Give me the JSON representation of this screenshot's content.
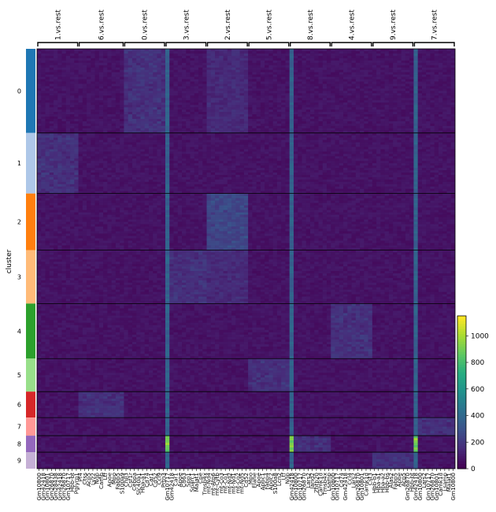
{
  "chart_data": {
    "type": "heatmap",
    "ylabel": "cluster",
    "clusters": [
      {
        "name": "0",
        "color": "#1f77b4",
        "cells": 107
      },
      {
        "name": "1",
        "color": "#aec7e8",
        "cells": 77
      },
      {
        "name": "2",
        "color": "#ff7f0e",
        "cells": 72
      },
      {
        "name": "3",
        "color": "#ffbb78",
        "cells": 68
      },
      {
        "name": "4",
        "color": "#2ca02c",
        "cells": 70
      },
      {
        "name": "5",
        "color": "#98df8a",
        "cells": 42
      },
      {
        "name": "6",
        "color": "#d62728",
        "cells": 33
      },
      {
        "name": "7",
        "color": "#ff9896",
        "cells": 23
      },
      {
        "name": "8",
        "color": "#9467bd",
        "cells": 21
      },
      {
        "name": "9",
        "color": "#c5b0d5",
        "cells": 21
      }
    ],
    "groups": [
      {
        "label": "1.vs.rest",
        "genes": [
          "Gm10800",
          "Gm42418",
          "Gm10801",
          "Gm26870",
          "Gm28438",
          "Gm42418",
          "Gm26870",
          "Gm10717",
          "Hbb-bt",
          "Pglyrp1"
        ]
      },
      {
        "label": "6.vs.rest",
        "genes": [
          "Pf4",
          "Ctss",
          "Acp5",
          "Lyz2",
          "Ngp",
          "Camp",
          "Ltf",
          "Apoe",
          "Mpo",
          "Fabp5",
          "S100a9"
        ]
      },
      {
        "label": "0.vs.rest",
        "genes": [
          "Chil3",
          "Csf1r",
          "Cebpa",
          "Slc40a1",
          "Hba-a1",
          "Cd74",
          "Car1",
          "Cd52",
          "Ccl9",
          "Prtn3"
        ]
      },
      {
        "label": "3.vs.rest",
        "genes": [
          "Gm10717",
          "Gm42418",
          "Car1",
          "Apoe",
          "Cd63",
          "Spp1",
          "Sparc1",
          "Malat1",
          "Cpe",
          "Tmsb4x"
        ]
      },
      {
        "label": "2.vs.rest",
        "genes": [
          "mt-Nd4",
          "mt-Atp6",
          "mt-Cytb",
          "mt-Co3",
          "mt-Co1",
          "mt-Nd2",
          "mt-Nd1",
          "mt-Co2",
          "mt-Nd5",
          "Cd52"
        ]
      },
      {
        "label": "5.vs.rest",
        "genes": [
          "Mpo",
          "Elane",
          "Apoe",
          "Apoc1",
          "Fabp4",
          "Apoc2",
          "S100a8",
          "Lcn2",
          "Ltf",
          "Ngp"
        ]
      },
      {
        "label": "8.vs.rest",
        "genes": [
          "Gm42418",
          "Gm10800",
          "Gm10717",
          "Gm26870",
          "Lars2",
          "Jarid2",
          "Zbtb20",
          "Camk1d",
          "Tmsb4x",
          "Lsamp"
        ]
      },
      {
        "label": "4.vs.rest",
        "genes": [
          "Gm10800",
          "Gm10717",
          "Cd74",
          "Gm42418",
          "Ccl4",
          "Lars2",
          "Gm26870",
          "Gm10801",
          "Camk1d",
          "Cst3"
        ]
      },
      {
        "label": "9.vs.rest",
        "genes": [
          "Hbb-b1",
          "Hba-a1",
          "Hba-a2",
          "Hbb-bs",
          "Alas2",
          "Fabp5",
          "Apoe",
          "Acp5",
          "Gm26870",
          "Hbb-bt"
        ]
      },
      {
        "label": "7.vs.rest",
        "genes": [
          "Gm42418",
          "Gm10800",
          "Lars2",
          "Gm10717",
          "Gm26870",
          "Gm10801",
          "Camk1d",
          "Lsamp",
          "Malat1",
          "Gm10800"
        ]
      }
    ],
    "colorbar": {
      "colormap": "viridis",
      "ticks": [
        0,
        200,
        400,
        600,
        800,
        1000
      ],
      "range": [
        0,
        1150
      ]
    },
    "notes_highlights": [
      {
        "cluster": "8",
        "group": "3.vs.rest",
        "gene_index": 0,
        "value": 900
      },
      {
        "cluster": "8",
        "group": "8.vs.rest",
        "gene_index": 0,
        "value": 850
      },
      {
        "cluster": "8",
        "group": "7.vs.rest",
        "gene_index": 0,
        "value": 900
      }
    ]
  }
}
